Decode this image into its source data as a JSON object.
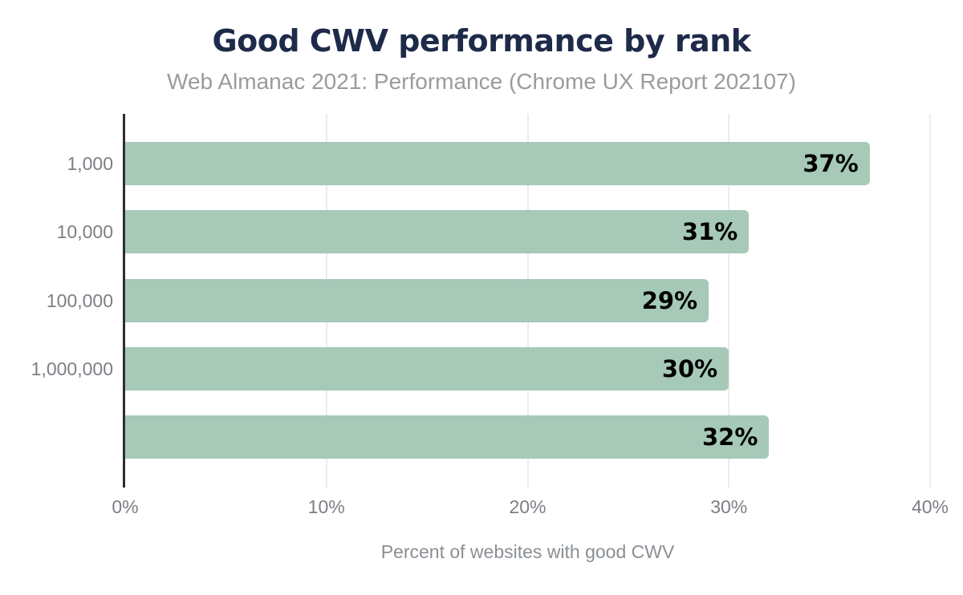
{
  "chart_data": {
    "type": "bar",
    "orientation": "horizontal",
    "title": "Good CWV performance by rank",
    "subtitle": "Web Almanac 2021: Performance (Chrome UX Report 202107)",
    "categories": [
      "1,000",
      "10,000",
      "100,000",
      "1,000,000",
      ""
    ],
    "values": [
      37,
      31,
      29,
      30,
      32
    ],
    "value_labels": [
      "37%",
      "31%",
      "29%",
      "30%",
      "32%"
    ],
    "xlabel": "Percent of websites with good CWV",
    "xlim": [
      0,
      40
    ],
    "xticks": [
      {
        "value": 0,
        "label": "0%"
      },
      {
        "value": 10,
        "label": "10%"
      },
      {
        "value": 20,
        "label": "20%"
      },
      {
        "value": 30,
        "label": "30%"
      },
      {
        "value": 40,
        "label": "40%"
      }
    ],
    "grid": true,
    "legend_position": "none",
    "colors": {
      "bar": "#a6c9b8",
      "title": "#1e2a49",
      "subtitle": "#9b9b9b",
      "tick_label": "#7b7f84",
      "axis_title": "#8a8f94",
      "data_label": "#000000",
      "gridline": "#ececec",
      "axis_line": "#2e2e2e",
      "background": "#ffffff"
    }
  }
}
